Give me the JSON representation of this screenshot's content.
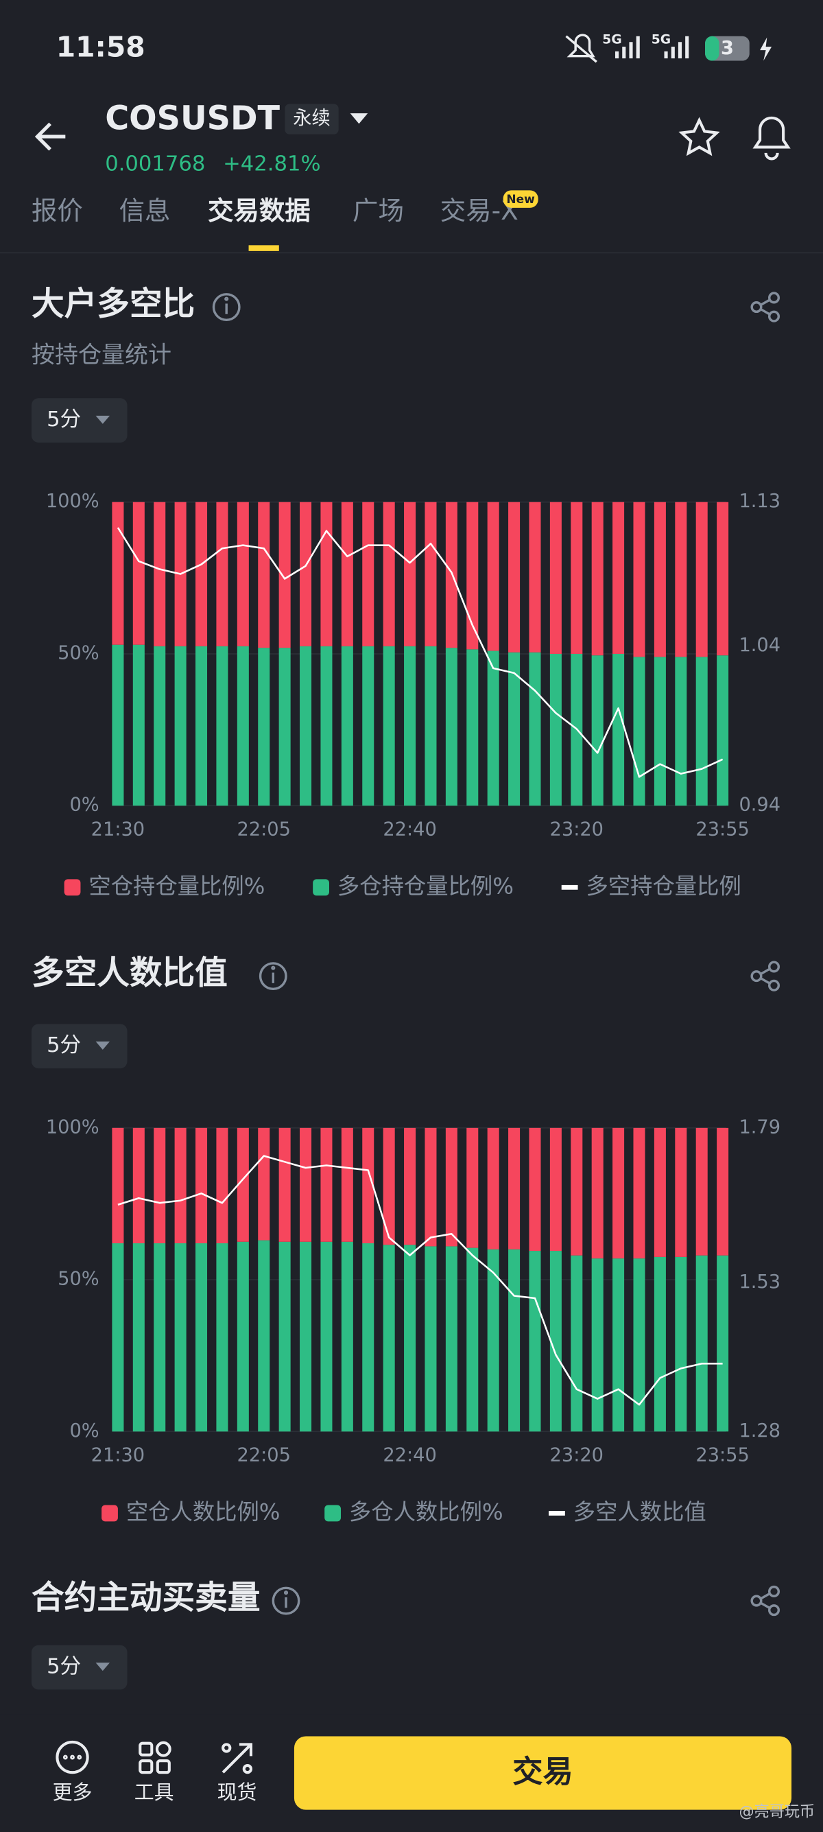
{
  "status_bar": {
    "time": "11:58",
    "network": [
      "5G",
      "5G"
    ],
    "battery": "3"
  },
  "header": {
    "symbol": "COSUSDT",
    "contract": "永续",
    "price": "0.001768",
    "change": "+42.81%"
  },
  "tabs": [
    "报价",
    "信息",
    "交易数据",
    "广场",
    "交易-X"
  ],
  "tab_badge": "New",
  "sections": [
    {
      "title": "大户多空比",
      "subtitle": "按持仓量统计",
      "interval": "5分"
    },
    {
      "title": "多空人数比值",
      "interval": "5分"
    },
    {
      "title": "合约主动买卖量",
      "interval": "5分"
    }
  ],
  "chart_data": [
    {
      "type": "bar",
      "stacked": true,
      "categories": [
        "21:30",
        null,
        null,
        null,
        null,
        null,
        null,
        "22:05",
        null,
        null,
        null,
        null,
        null,
        null,
        "22:40",
        null,
        null,
        null,
        null,
        null,
        null,
        null,
        "23:20",
        null,
        null,
        null,
        null,
        null,
        null,
        "23:55"
      ],
      "series": [
        {
          "name": "空仓持仓量比例%",
          "color": "#f6465d",
          "values": [
            47,
            47,
            47.5,
            47.5,
            47.5,
            47.5,
            47.5,
            48,
            48,
            47.5,
            47.5,
            47.5,
            47.5,
            47.5,
            47.5,
            47.5,
            48,
            48.5,
            49,
            49.5,
            49.5,
            50,
            50,
            50.5,
            50,
            51,
            51,
            51,
            51,
            50.5
          ]
        },
        {
          "name": "多仓持仓量比例%",
          "color": "#2ebd85",
          "values": [
            53,
            53,
            52.5,
            52.5,
            52.5,
            52.5,
            52.5,
            52,
            52,
            52.5,
            52.5,
            52.5,
            52.5,
            52.5,
            52.5,
            52.5,
            52,
            51.5,
            51,
            50.5,
            50.5,
            50,
            50,
            49.5,
            50,
            49,
            49,
            49,
            49,
            49.5
          ]
        },
        {
          "name": "多空持仓量比例",
          "color": "#ffffff",
          "type": "line",
          "axis": "y2",
          "values": [
            1.114,
            1.093,
            1.088,
            1.085,
            1.091,
            1.101,
            1.103,
            1.101,
            1.082,
            1.09,
            1.112,
            1.096,
            1.103,
            1.103,
            1.092,
            1.104,
            1.086,
            1.053,
            1.026,
            1.023,
            1.012,
            0.998,
            0.988,
            0.973,
            1.001,
            0.958,
            0.966,
            0.96,
            0.963,
            0.969
          ]
        }
      ],
      "ylim": [
        0,
        100
      ],
      "yticks": [
        {
          "value": 0,
          "label": "0%"
        },
        {
          "value": 50,
          "label": "50%"
        },
        {
          "value": 100,
          "label": "100%"
        }
      ],
      "y2lim": [
        0.94,
        1.13
      ],
      "y2ticks": [
        0.94,
        1.04,
        1.13
      ],
      "grid": true
    },
    {
      "type": "bar",
      "stacked": true,
      "categories": [
        "21:30",
        null,
        null,
        null,
        null,
        null,
        null,
        "22:05",
        null,
        null,
        null,
        null,
        null,
        null,
        "22:40",
        null,
        null,
        null,
        null,
        null,
        null,
        null,
        "23:20",
        null,
        null,
        null,
        null,
        null,
        null,
        "23:55"
      ],
      "series": [
        {
          "name": "空仓人数比例%",
          "color": "#f6465d",
          "values": [
            38,
            38,
            38,
            38,
            38,
            38,
            37.5,
            37,
            37.5,
            37.5,
            37.5,
            37.5,
            38,
            38.5,
            38.5,
            39,
            39,
            39.5,
            40,
            40,
            40.5,
            40.5,
            42,
            43,
            43,
            43,
            42.5,
            42.5,
            42,
            42
          ]
        },
        {
          "name": "多仓人数比例%",
          "color": "#2ebd85",
          "values": [
            62,
            62,
            62,
            62,
            62,
            62,
            62.5,
            63,
            62.5,
            62.5,
            62.5,
            62.5,
            62,
            61.5,
            61.5,
            61,
            61,
            60.5,
            60,
            60,
            59.5,
            59.5,
            58,
            57,
            57,
            57,
            57.5,
            57.5,
            58,
            58
          ]
        },
        {
          "name": "多空人数比值",
          "color": "#ffffff",
          "type": "line",
          "axis": "y2",
          "values": [
            1.661,
            1.672,
            1.664,
            1.668,
            1.68,
            1.664,
            1.704,
            1.743,
            1.733,
            1.723,
            1.727,
            1.723,
            1.719,
            1.606,
            1.576,
            1.606,
            1.612,
            1.576,
            1.547,
            1.508,
            1.504,
            1.409,
            1.351,
            1.335,
            1.351,
            1.325,
            1.37,
            1.386,
            1.394,
            1.394
          ]
        }
      ],
      "ylim": [
        0,
        100
      ],
      "yticks": [
        {
          "value": 0,
          "label": "0%"
        },
        {
          "value": 50,
          "label": "50%"
        },
        {
          "value": 100,
          "label": "100%"
        }
      ],
      "y2lim": [
        1.28,
        1.79
      ],
      "y2ticks": [
        1.28,
        1.53,
        1.79
      ],
      "grid": true
    }
  ],
  "bottom_bar": {
    "buttons": [
      "更多",
      "工具",
      "现货"
    ],
    "trade": "交易"
  },
  "watermark": "@亮哥玩币"
}
